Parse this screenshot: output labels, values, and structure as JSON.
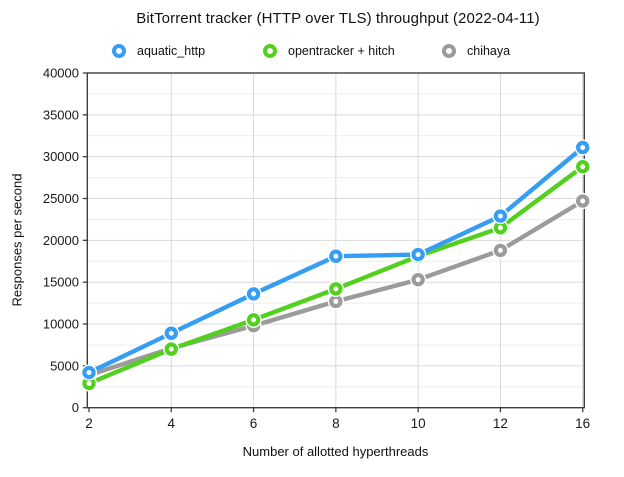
{
  "chart_data": {
    "type": "line",
    "title": "BitTorrent tracker (HTTP over TLS) throughput (2022-04-11)",
    "xlabel": "Number of allotted hyperthreads",
    "ylabel": "Responses per second",
    "categories": [
      2,
      4,
      6,
      8,
      10,
      12,
      16
    ],
    "series": [
      {
        "name": "aquatic_http",
        "color": "#359df4",
        "values": [
          4200,
          8900,
          13600,
          18100,
          18300,
          22900,
          31100
        ]
      },
      {
        "name": "opentracker + hitch",
        "color": "#52d01e",
        "values": [
          2900,
          7000,
          10500,
          14200,
          18100,
          21500,
          28800
        ]
      },
      {
        "name": "chihaya",
        "color": "#9b9b9b",
        "values": [
          3900,
          7100,
          9800,
          12700,
          15300,
          18800,
          24700
        ]
      }
    ],
    "ylim": [
      0,
      40000
    ],
    "ytick_step": 5000,
    "yminor_step": 2500,
    "yticks": [
      0,
      5000,
      10000,
      15000,
      20000,
      25000,
      30000,
      35000,
      40000
    ],
    "grid": true,
    "legend_position": "top",
    "marker": "open-circle",
    "style": {
      "grid_major_color": "#d9d9d9",
      "grid_minor_color": "#ededed",
      "axis_color": "#3f3f3f",
      "text_color": "#1a1a1a"
    }
  }
}
